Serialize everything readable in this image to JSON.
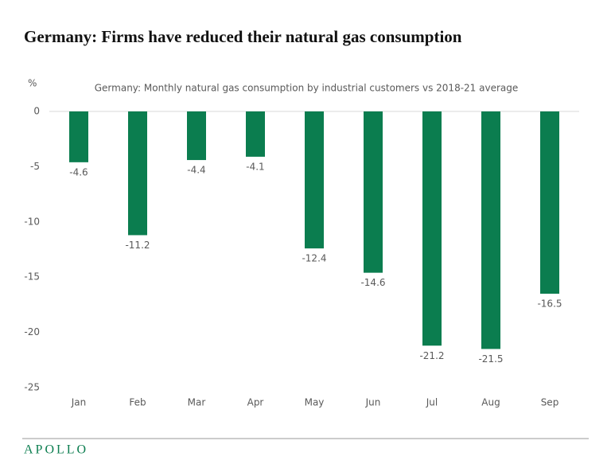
{
  "chart_data": {
    "type": "bar",
    "title": "Germany: Firms have reduced their natural gas consumption",
    "subtitle": "Germany: Monthly natural gas consumption by industrial customers vs 2018-21 average",
    "y_label": "%",
    "categories": [
      "Jan",
      "Feb",
      "Mar",
      "Apr",
      "May",
      "Jun",
      "Jul",
      "Aug",
      "Sep"
    ],
    "values": [
      -4.6,
      -11.2,
      -4.4,
      -4.1,
      -12.4,
      -14.6,
      -21.2,
      -21.5,
      -16.5
    ],
    "color": "#0b7d4f",
    "ylim": [
      -25,
      0
    ],
    "yticks": [
      0,
      -5,
      -10,
      -15,
      -20,
      -25
    ],
    "grid": false
  },
  "footer": "APOLLO"
}
